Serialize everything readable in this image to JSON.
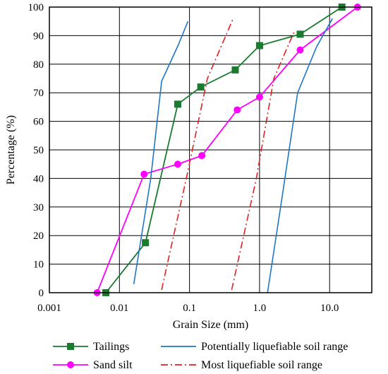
{
  "chart_data": {
    "type": "line",
    "xlabel": "Grain Size (mm)",
    "ylabel": "Percentage (%)",
    "x_scale": "log",
    "xlim": [
      0.001,
      40
    ],
    "ylim": [
      0,
      100
    ],
    "x_ticks": [
      0.001,
      0.01,
      0.1,
      1.0,
      10.0
    ],
    "x_tick_labels": [
      "0.001",
      "0.01",
      "0.1",
      "1.0",
      "10.0"
    ],
    "y_ticks": [
      0,
      10,
      20,
      30,
      40,
      50,
      60,
      70,
      80,
      90,
      100
    ],
    "grid": true,
    "legend_position": "bottom",
    "series": [
      {
        "name": "Tailings",
        "color": "#1a7a2e",
        "marker": "square",
        "line": "solid",
        "x": [
          0.0064,
          0.0235,
          0.068,
          0.145,
          0.45,
          1.0,
          3.8,
          15.0
        ],
        "y": [
          0,
          17.5,
          66,
          72,
          78,
          86.5,
          90.5,
          100
        ]
      },
      {
        "name": "Sand silt",
        "color": "#ff00ff",
        "marker": "circle",
        "line": "solid",
        "x": [
          0.0048,
          0.0225,
          0.068,
          0.15,
          0.48,
          1.0,
          3.8,
          25.0
        ],
        "y": [
          0,
          41.5,
          45,
          48,
          64,
          68.5,
          85,
          100
        ]
      },
      {
        "name": "Potentially liquefiable soil range",
        "color": "#1f77c4",
        "marker": "none",
        "line": "solid",
        "segments": [
          {
            "x": [
              0.016,
              0.028,
              0.04,
              0.07,
              0.095
            ],
            "y": [
              3,
              40,
              74,
              87,
              95
            ]
          },
          {
            "x": [
              1.3,
              2.0,
              3.5,
              6.5,
              11.0
            ],
            "y": [
              0,
              30,
              70,
              86,
              96
            ]
          }
        ]
      },
      {
        "name": "Most liquefiable soil range",
        "color": "#e02020",
        "marker": "none",
        "line": "dashdot",
        "segments": [
          {
            "x": [
              0.04,
              0.09,
              0.18,
              0.42
            ],
            "y": [
              1,
              40,
              75,
              96
            ]
          },
          {
            "x": [
              0.4,
              0.9,
              1.6,
              3.2
            ],
            "y": [
              1,
              40,
              75,
              92
            ]
          }
        ]
      }
    ]
  }
}
